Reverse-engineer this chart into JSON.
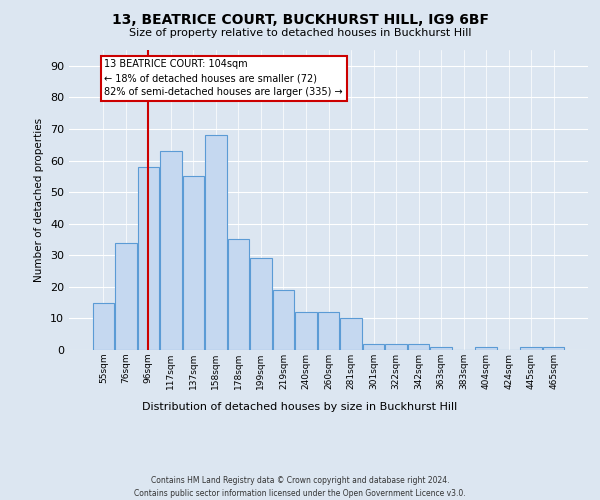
{
  "title": "13, BEATRICE COURT, BUCKHURST HILL, IG9 6BF",
  "subtitle": "Size of property relative to detached houses in Buckhurst Hill",
  "xlabel": "Distribution of detached houses by size in Buckhurst Hill",
  "ylabel": "Number of detached properties",
  "footer_line1": "Contains HM Land Registry data © Crown copyright and database right 2024.",
  "footer_line2": "Contains public sector information licensed under the Open Government Licence v3.0.",
  "categories": [
    "55sqm",
    "76sqm",
    "96sqm",
    "117sqm",
    "137sqm",
    "158sqm",
    "178sqm",
    "199sqm",
    "219sqm",
    "240sqm",
    "260sqm",
    "281sqm",
    "301sqm",
    "322sqm",
    "342sqm",
    "363sqm",
    "383sqm",
    "404sqm",
    "424sqm",
    "445sqm",
    "465sqm"
  ],
  "values": [
    15,
    34,
    58,
    63,
    55,
    68,
    35,
    29,
    19,
    12,
    12,
    10,
    2,
    2,
    2,
    1,
    0,
    1,
    0,
    1,
    1
  ],
  "bar_color": "#c5d8f0",
  "bar_edge_color": "#5b9bd5",
  "background_color": "#dce6f1",
  "plot_bg_color": "#dce6f1",
  "red_line_index": 2,
  "annotation_line1": "13 BEATRICE COURT: 104sqm",
  "annotation_line2": "← 18% of detached houses are smaller (72)",
  "annotation_line3": "82% of semi-detached houses are larger (335) →",
  "annotation_box_color": "#ffffff",
  "annotation_box_edge": "#cc0000",
  "red_line_color": "#cc0000",
  "ylim": [
    0,
    95
  ],
  "yticks": [
    0,
    10,
    20,
    30,
    40,
    50,
    60,
    70,
    80,
    90
  ]
}
